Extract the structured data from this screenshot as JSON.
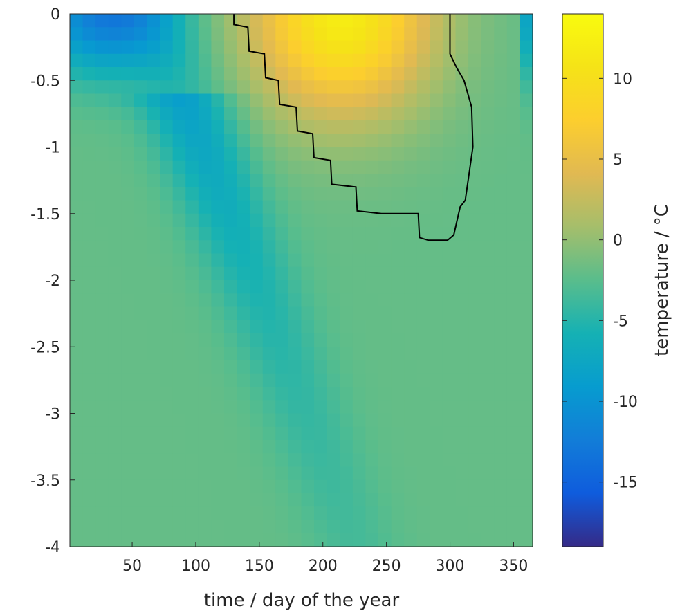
{
  "chart_data": {
    "type": "heatmap",
    "title": "",
    "xlabel": "time / day of the year",
    "ylabel": "",
    "xlim": [
      1,
      365
    ],
    "ylim": [
      -4,
      0
    ],
    "x_ticks": [
      50,
      100,
      150,
      200,
      250,
      300,
      350
    ],
    "y_ticks": [
      0,
      -0.5,
      -1,
      -1.5,
      -2,
      -2.5,
      -3,
      -3.5,
      -4
    ],
    "y_tick_labels": [
      "0",
      "-0.5",
      "-1",
      "-1.5",
      "-2",
      "-2.5",
      "-3",
      "-3.5",
      "-4"
    ],
    "colorbar": {
      "label": "temperature / °C",
      "limits": [
        -19,
        14
      ],
      "ticks": [
        10,
        5,
        0,
        -5,
        -10,
        -15
      ],
      "tick_labels": [
        "10",
        "5",
        "0",
        "-5",
        "-10",
        "-15"
      ],
      "colormap": "parula"
    },
    "grid": false,
    "field_description": [
      {
        "region": "near-surface winter (days 1-40, depth 0 to -0.5)",
        "temperature": -12
      },
      {
        "region": "cold tongue (days 60-130, depth -0.5 to -3.5)",
        "temperature_range": [
          -9,
          -4
        ]
      },
      {
        "region": "summer near-surface (days 170-270, depth 0 to -0.5)",
        "temperature_range": [
          8,
          11
        ]
      },
      {
        "region": "day 360+ surface",
        "temperature": -12
      },
      {
        "region": "deep layers",
        "temperature": -2
      }
    ],
    "contour": {
      "level": 0,
      "color": "#000000",
      "points": [
        [
          130,
          0
        ],
        [
          130,
          -0.08
        ],
        [
          141,
          -0.1
        ],
        [
          142,
          -0.28
        ],
        [
          154,
          -0.3
        ],
        [
          155,
          -0.48
        ],
        [
          165,
          -0.5
        ],
        [
          166,
          -0.68
        ],
        [
          179,
          -0.7
        ],
        [
          180,
          -0.88
        ],
        [
          192,
          -0.9
        ],
        [
          193,
          -1.08
        ],
        [
          206,
          -1.1
        ],
        [
          207,
          -1.28
        ],
        [
          226,
          -1.3
        ],
        [
          227,
          -1.48
        ],
        [
          246,
          -1.5
        ],
        [
          275,
          -1.5
        ],
        [
          276,
          -1.68
        ],
        [
          283,
          -1.7
        ],
        [
          298,
          -1.7
        ],
        [
          303,
          -1.66
        ],
        [
          308,
          -1.45
        ],
        [
          312,
          -1.4
        ],
        [
          318,
          -1.0
        ],
        [
          317,
          -0.7
        ],
        [
          311,
          -0.5
        ],
        [
          305,
          -0.4
        ],
        [
          300,
          -0.3
        ],
        [
          300,
          0
        ]
      ]
    }
  }
}
